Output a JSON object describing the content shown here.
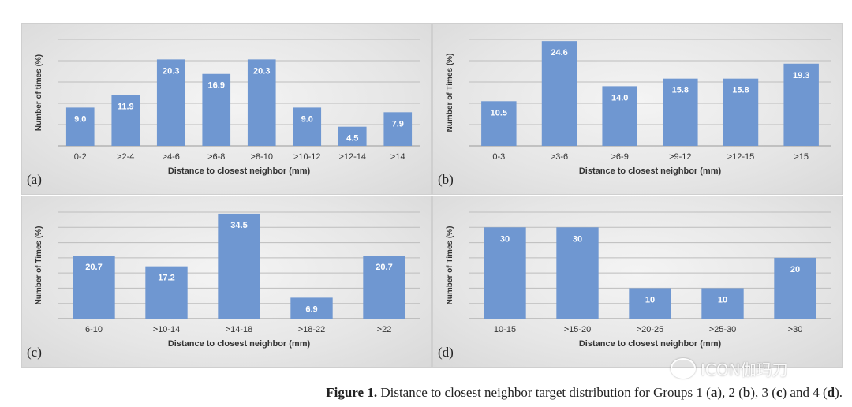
{
  "chart_data": [
    {
      "type": "bar",
      "panel": "(a)",
      "categories": [
        "0-2",
        ">2-4",
        ">4-6",
        ">6-8",
        ">8-10",
        ">10-12",
        ">12-14",
        ">14"
      ],
      "values": [
        9.0,
        11.9,
        20.3,
        16.9,
        20.3,
        9.0,
        4.5,
        7.9
      ],
      "labels": [
        "9.0",
        "11.9",
        "20.3",
        "16.9",
        "20.3",
        "9.0",
        "4.5",
        "7.9"
      ],
      "xlabel": "Distance to closest neighbor (mm)",
      "ylabel": "Number of times (%)",
      "ylim": [
        0,
        25
      ],
      "grid": true,
      "bar_color": "#6f97d1"
    },
    {
      "type": "bar",
      "panel": "(b)",
      "categories": [
        "0-3",
        ">3-6",
        ">6-9",
        ">9-12",
        ">12-15",
        ">15"
      ],
      "values": [
        10.5,
        24.6,
        14.0,
        15.8,
        15.8,
        19.3
      ],
      "labels": [
        "10.5",
        "24.6",
        "14.0",
        "15.8",
        "15.8",
        "19.3"
      ],
      "xlabel": "Distance to closest neighbor (mm)",
      "ylabel": "Number of Times (%)",
      "ylim": [
        0,
        25
      ],
      "grid": true,
      "bar_color": "#6f97d1"
    },
    {
      "type": "bar",
      "panel": "(c)",
      "categories": [
        "6-10",
        ">10-14",
        ">14-18",
        ">18-22",
        ">22"
      ],
      "values": [
        20.7,
        17.2,
        34.5,
        6.9,
        20.7
      ],
      "labels": [
        "20.7",
        "17.2",
        "34.5",
        "6.9",
        "20.7"
      ],
      "xlabel": "Distance to closest neighbor (mm)",
      "ylabel": "Number of Times (%)",
      "ylim": [
        0,
        35
      ],
      "grid": true,
      "bar_color": "#6f97d1"
    },
    {
      "type": "bar",
      "panel": "(d)",
      "categories": [
        "10-15",
        ">15-20",
        ">20-25",
        ">25-30",
        ">30"
      ],
      "values": [
        30,
        30,
        10,
        10,
        20
      ],
      "labels": [
        "30",
        "30",
        "10",
        "10",
        "20"
      ],
      "xlabel": "Distance to closest neighbor (mm)",
      "ylabel": "Number of Times (%)",
      "ylim": [
        0,
        35
      ],
      "grid": true,
      "bar_color": "#6f97d1"
    }
  ],
  "caption": {
    "label": "Figure 1.",
    "text_1": " Distance to closest neighbor target distribution for Groups 1 (",
    "a": "a",
    "text_2": "), 2 (",
    "b": "b",
    "text_3": "), 3 (",
    "c": "c",
    "text_4": ") and 4 (",
    "d": "d",
    "text_5": ")."
  },
  "watermark": "ICON伽玛刀"
}
